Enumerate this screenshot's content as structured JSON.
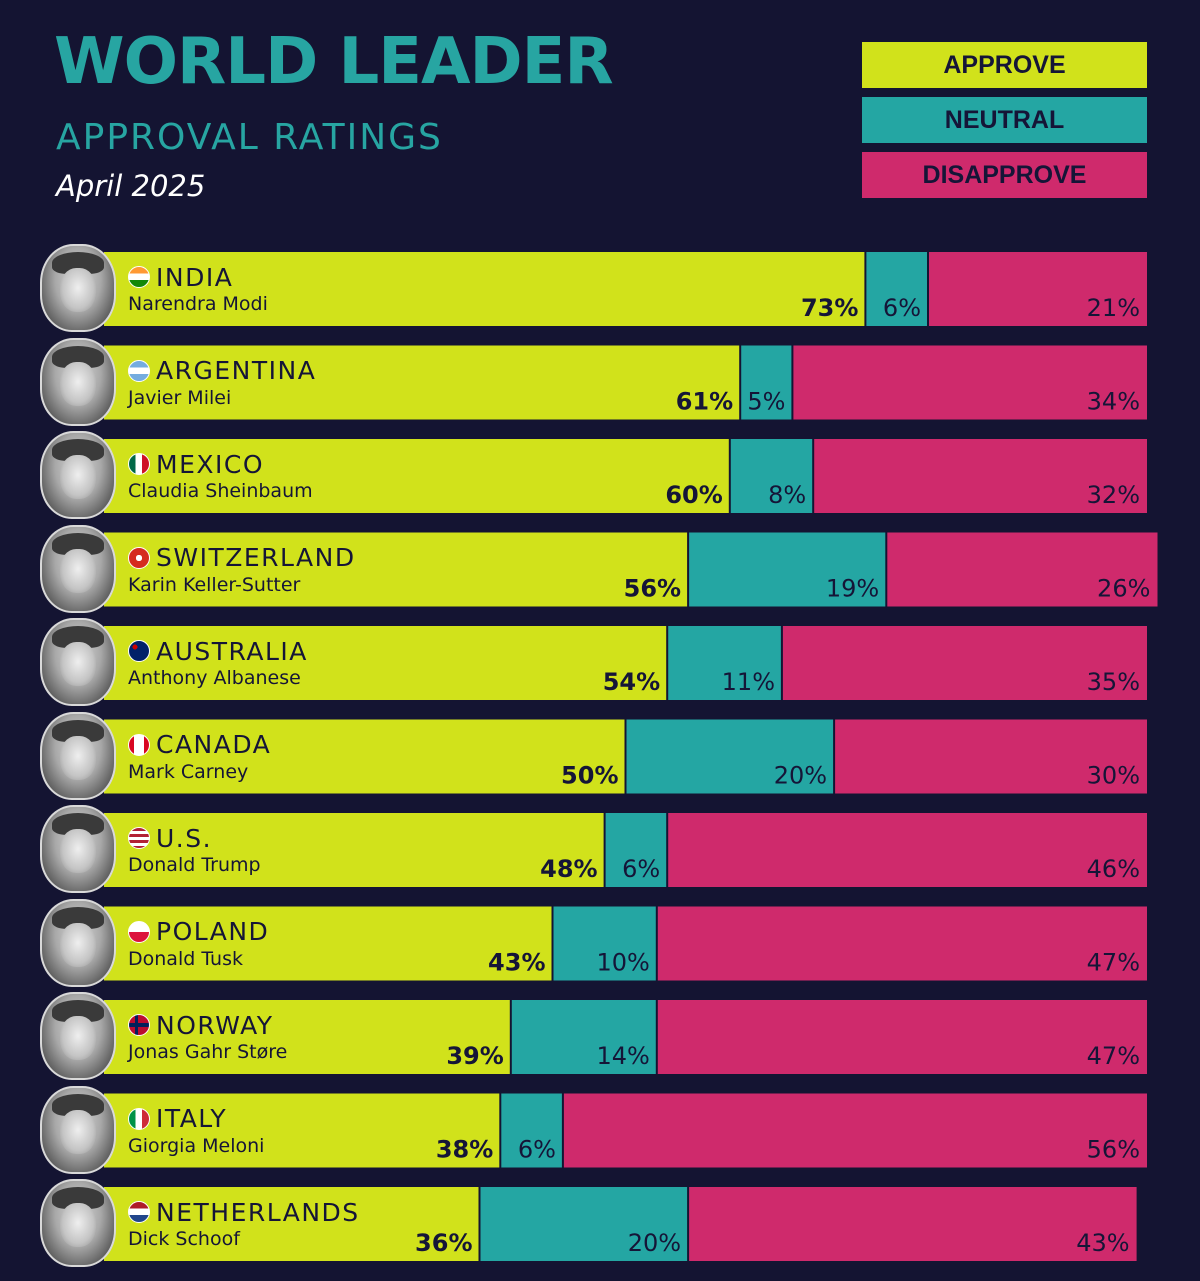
{
  "header": {
    "title": "WORLD LEADER",
    "subtitle": "APPROVAL RATINGS",
    "date": "April 2025"
  },
  "legend": {
    "approve": "APPROVE",
    "neutral": "NEUTRAL",
    "disapprove": "DISAPPROVE"
  },
  "colors": {
    "approve": "#d1e21b",
    "neutral": "#24a6a3",
    "disapprove": "#cf2a6c",
    "background": "#141432"
  },
  "chart_data": {
    "type": "bar",
    "orientation": "horizontal",
    "stacked": true,
    "categories": [
      "INDIA",
      "ARGENTINA",
      "MEXICO",
      "SWITZERLAND",
      "AUSTRALIA",
      "CANADA",
      "U.S.",
      "POLAND",
      "NORWAY",
      "ITALY",
      "NETHERLANDS"
    ],
    "leaders": [
      "Narendra Modi",
      "Javier Milei",
      "Claudia Sheinbaum",
      "Karin Keller-Sutter",
      "Anthony Albanese",
      "Mark Carney",
      "Donald Trump",
      "Donald Tusk",
      "Jonas Gahr Støre",
      "Giorgia Meloni",
      "Dick Schoof"
    ],
    "flags": [
      "india-flag-icon",
      "argentina-flag-icon",
      "mexico-flag-icon",
      "switzerland-flag-icon",
      "australia-flag-icon",
      "canada-flag-icon",
      "us-flag-icon",
      "poland-flag-icon",
      "norway-flag-icon",
      "italy-flag-icon",
      "netherlands-flag-icon"
    ],
    "series": [
      {
        "name": "APPROVE",
        "values": [
          73,
          61,
          60,
          56,
          54,
          50,
          48,
          43,
          39,
          38,
          36
        ]
      },
      {
        "name": "NEUTRAL",
        "values": [
          6,
          5,
          8,
          19,
          11,
          20,
          6,
          10,
          14,
          6,
          20
        ]
      },
      {
        "name": "DISAPPROVE",
        "values": [
          21,
          34,
          32,
          26,
          35,
          30,
          46,
          47,
          47,
          56,
          43
        ]
      }
    ],
    "xlim": [
      0,
      100
    ],
    "unit": "%"
  }
}
